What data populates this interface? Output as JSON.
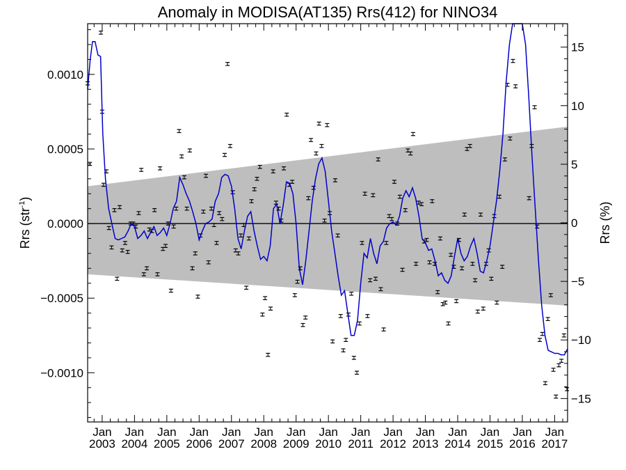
{
  "chart_data": {
    "type": "scatter",
    "title": "Anomaly in MODISA(AT135) Rrs(412) for NINO34",
    "ylabel_left": "Rrs (str",
    "ylabel_left_sup": "-1",
    "ylabel_left_close": ")",
    "ylabel_right": "Rrs (%)",
    "xlim": [
      2002.55,
      2017.4
    ],
    "ylim": [
      -0.00133,
      0.00134
    ],
    "ylim_right": [
      -17.0,
      17.0
    ],
    "y_ticks": [
      {
        "value": 0.001,
        "label": "0.0010"
      },
      {
        "value": 0.0005,
        "label": "0.0005"
      },
      {
        "value": 0.0,
        "label": "0.0000"
      },
      {
        "value": -0.0005,
        "label": "−0.0005"
      },
      {
        "value": -0.001,
        "label": "−0.0010"
      }
    ],
    "y_right_ticks": [
      {
        "value": 15,
        "label": "15"
      },
      {
        "value": 10,
        "label": "10"
      },
      {
        "value": 5,
        "label": "5"
      },
      {
        "value": 0,
        "label": "0"
      },
      {
        "value": -5,
        "label": "−5"
      },
      {
        "value": -10,
        "label": "−10"
      },
      {
        "value": -15,
        "label": "−15"
      }
    ],
    "x_ticks": [
      {
        "value": 2003.0,
        "month": "Jan",
        "year": "2003"
      },
      {
        "value": 2004.0,
        "month": "Jan",
        "year": "2004"
      },
      {
        "value": 2005.0,
        "month": "Jan",
        "year": "2005"
      },
      {
        "value": 2006.0,
        "month": "Jan",
        "year": "2006"
      },
      {
        "value": 2007.0,
        "month": "Jan",
        "year": "2007"
      },
      {
        "value": 2008.0,
        "month": "Jan",
        "year": "2008"
      },
      {
        "value": 2009.0,
        "month": "Jan",
        "year": "2009"
      },
      {
        "value": 2010.0,
        "month": "Jan",
        "year": "2010"
      },
      {
        "value": 2011.0,
        "month": "Jan",
        "year": "2011"
      },
      {
        "value": 2012.0,
        "month": "Jan",
        "year": "2012"
      },
      {
        "value": 2013.0,
        "month": "Jan",
        "year": "2013"
      },
      {
        "value": 2014.0,
        "month": "Jan",
        "year": "2014"
      },
      {
        "value": 2015.0,
        "month": "Jan",
        "year": "2015"
      },
      {
        "value": 2016.0,
        "month": "Jan",
        "year": "2016"
      },
      {
        "value": 2017.0,
        "month": "Jan",
        "year": "2017"
      }
    ],
    "band": {
      "x0": 2002.55,
      "x1": 2017.4,
      "upper": [
        0.00025,
        0.00065
      ],
      "lower": [
        -0.00034,
        -0.00055
      ],
      "color": "#bebebe"
    },
    "zero_line": true,
    "grid": false,
    "legend": "none",
    "colors": {
      "points": "#000000",
      "smooth": "#0000cc",
      "band": "#bebebe",
      "axes": "#000000"
    },
    "points": [
      [
        2002.55,
        0.00094
      ],
      [
        2002.62,
        0.0004
      ],
      [
        2002.96,
        0.00128
      ],
      [
        2003.0,
        0.00075
      ],
      [
        2003.04,
        0.00026
      ],
      [
        2003.13,
        0.00035
      ],
      [
        2003.21,
        -3e-05
      ],
      [
        2003.29,
        -0.00016
      ],
      [
        2003.38,
        9e-05
      ],
      [
        2003.46,
        -0.00037
      ],
      [
        2003.54,
        0.00011
      ],
      [
        2003.62,
        -0.00018
      ],
      [
        2003.71,
        -0.00013
      ],
      [
        2003.79,
        -0.00019
      ],
      [
        2003.88,
        -0.0
      ],
      [
        2003.96,
        0.0
      ],
      [
        2004.04,
        -2e-05
      ],
      [
        2004.13,
        7e-05
      ],
      [
        2004.21,
        0.00036
      ],
      [
        2004.29,
        -0.00034
      ],
      [
        2004.38,
        -0.0003
      ],
      [
        2004.46,
        -4e-05
      ],
      [
        2004.54,
        -5e-05
      ],
      [
        2004.62,
        9e-05
      ],
      [
        2004.71,
        -0.00034
      ],
      [
        2004.79,
        0.00037
      ],
      [
        2004.88,
        -0.00017
      ],
      [
        2004.96,
        -0.00015
      ],
      [
        2005.04,
        -0.0
      ],
      [
        2005.13,
        -0.00045
      ],
      [
        2005.21,
        -2e-05
      ],
      [
        2005.29,
        0.0001
      ],
      [
        2005.38,
        0.00062
      ],
      [
        2005.46,
        0.00045
      ],
      [
        2005.54,
        0.00031
      ],
      [
        2005.62,
        0.0001
      ],
      [
        2005.71,
        0.00049
      ],
      [
        2005.79,
        -0.0003
      ],
      [
        2005.88,
        -0.0002
      ],
      [
        2005.96,
        -0.00049
      ],
      [
        2006.04,
        -8e-05
      ],
      [
        2006.13,
        8e-05
      ],
      [
        2006.21,
        0.00032
      ],
      [
        2006.29,
        -0.00026
      ],
      [
        2006.38,
        0.0001
      ],
      [
        2006.46,
        -1e-05
      ],
      [
        2006.54,
        -0.00013
      ],
      [
        2006.62,
        7e-05
      ],
      [
        2006.71,
        3e-05
      ],
      [
        2006.79,
        0.00046
      ],
      [
        2006.88,
        0.00107
      ],
      [
        2006.96,
        0.00052
      ],
      [
        2007.04,
        0.00021
      ],
      [
        2007.13,
        -0.00018
      ],
      [
        2007.21,
        -0.0002
      ],
      [
        2007.29,
        -8e-05
      ],
      [
        2007.38,
        -1e-05
      ],
      [
        2007.46,
        -0.00043
      ],
      [
        2007.54,
        -0.0001
      ],
      [
        2007.62,
        0.00015
      ],
      [
        2007.71,
        0.00023
      ],
      [
        2007.79,
        0.0003
      ],
      [
        2007.88,
        0.00038
      ],
      [
        2007.96,
        -0.00061
      ],
      [
        2008.04,
        -0.0005
      ],
      [
        2008.13,
        -0.00088
      ],
      [
        2008.21,
        -0.00057
      ],
      [
        2008.29,
        0.00035
      ],
      [
        2008.38,
        0.00014
      ],
      [
        2008.46,
        0.0001
      ],
      [
        2008.54,
        2e-05
      ],
      [
        2008.62,
        0.00037
      ],
      [
        2008.71,
        0.00073
      ],
      [
        2008.79,
        0.00026
      ],
      [
        2008.88,
        0.00028
      ],
      [
        2008.96,
        -0.00048
      ],
      [
        2009.04,
        -0.00039
      ],
      [
        2009.13,
        -0.0003
      ],
      [
        2009.21,
        -0.00068
      ],
      [
        2009.29,
        -0.00063
      ],
      [
        2009.38,
        0.00017
      ],
      [
        2009.46,
        0.00056
      ],
      [
        2009.54,
        0.00024
      ],
      [
        2009.62,
        0.00047
      ],
      [
        2009.71,
        0.00067
      ],
      [
        2009.79,
        0.00052
      ],
      [
        2009.88,
        2e-05
      ],
      [
        2009.96,
        0.00066
      ],
      [
        2010.04,
        7e-05
      ],
      [
        2010.13,
        -0.00079
      ],
      [
        2010.21,
        0.00029
      ],
      [
        2010.29,
        -8e-05
      ],
      [
        2010.38,
        -0.00062
      ],
      [
        2010.46,
        -0.00085
      ],
      [
        2010.54,
        -0.00078
      ],
      [
        2010.62,
        -0.00061
      ],
      [
        2010.71,
        -0.00047
      ],
      [
        2010.79,
        -0.0009
      ],
      [
        2010.88,
        -0.001
      ],
      [
        2010.96,
        -0.00067
      ],
      [
        2011.04,
        -0.00013
      ],
      [
        2011.13,
        0.0002
      ],
      [
        2011.21,
        -0.00062
      ],
      [
        2011.29,
        -0.00038
      ],
      [
        2011.38,
        0.00019
      ],
      [
        2011.46,
        -0.00037
      ],
      [
        2011.54,
        0.00043
      ],
      [
        2011.62,
        -0.00044
      ],
      [
        2011.71,
        -0.00071
      ],
      [
        2011.79,
        -0.00013
      ],
      [
        2011.88,
        5e-05
      ],
      [
        2011.96,
        3e-05
      ],
      [
        2012.04,
        0.00028
      ],
      [
        2012.13,
        0.0
      ],
      [
        2012.21,
        0.00018
      ],
      [
        2012.29,
        -0.00031
      ],
      [
        2012.38,
        9e-05
      ],
      [
        2012.46,
        0.00049
      ],
      [
        2012.54,
        0.00047
      ],
      [
        2012.62,
        0.0006
      ],
      [
        2012.71,
        -0.00027
      ],
      [
        2012.79,
        0.00014
      ],
      [
        2012.88,
        0.00013
      ],
      [
        2012.96,
        -0.00012
      ],
      [
        2013.04,
        -0.00011
      ],
      [
        2013.13,
        -0.00026
      ],
      [
        2013.21,
        0.00015
      ],
      [
        2013.29,
        -0.00027
      ],
      [
        2013.38,
        -0.00046
      ],
      [
        2013.46,
        -0.0001
      ],
      [
        2013.54,
        -0.00054
      ],
      [
        2013.62,
        -0.00053
      ],
      [
        2013.71,
        -0.00067
      ],
      [
        2013.79,
        -0.00021
      ],
      [
        2013.88,
        -0.00029
      ],
      [
        2013.96,
        -0.00052
      ],
      [
        2014.04,
        -0.00011
      ],
      [
        2014.13,
        -0.0003
      ],
      [
        2014.21,
        6e-05
      ],
      [
        2014.29,
        0.0005
      ],
      [
        2014.38,
        0.00052
      ],
      [
        2014.46,
        -0.00027
      ],
      [
        2014.54,
        -0.00038
      ],
      [
        2014.62,
        -0.00059
      ],
      [
        2014.71,
        6e-05
      ],
      [
        2014.79,
        -0.00057
      ],
      [
        2014.88,
        -0.00027
      ],
      [
        2014.96,
        -0.00018
      ],
      [
        2015.04,
        -0.00037
      ],
      [
        2015.13,
        5e-05
      ],
      [
        2015.21,
        -0.00053
      ],
      [
        2015.29,
        0.00018
      ],
      [
        2015.38,
        -0.00029
      ],
      [
        2015.46,
        0.00043
      ],
      [
        2015.54,
        0.00093
      ],
      [
        2015.62,
        0.00057
      ],
      [
        2015.71,
        0.00109
      ],
      [
        2015.79,
        0.00092
      ],
      [
        2016.21,
        0.00017
      ],
      [
        2016.29,
        0.00052
      ],
      [
        2016.38,
        0.00078
      ],
      [
        2016.46,
        -2e-05
      ],
      [
        2016.54,
        -0.00078
      ],
      [
        2016.62,
        -0.00074
      ],
      [
        2016.71,
        -0.00107
      ],
      [
        2016.79,
        -0.00064
      ],
      [
        2016.88,
        -0.00048
      ],
      [
        2016.96,
        -0.00098
      ],
      [
        2017.04,
        -0.00116
      ],
      [
        2017.13,
        -0.00095
      ],
      [
        2017.21,
        -0.00092
      ],
      [
        2017.29,
        -0.00075
      ],
      [
        2017.38,
        -0.00111
      ]
    ],
    "smooth": [
      [
        2002.55,
        0.0009
      ],
      [
        2002.63,
        0.0011
      ],
      [
        2002.7,
        0.00122
      ],
      [
        2002.78,
        0.00122
      ],
      [
        2002.87,
        0.00113
      ],
      [
        2002.95,
        0.00112
      ],
      [
        2003.02,
        0.0006
      ],
      [
        2003.1,
        0.0003
      ],
      [
        2003.2,
        0.0001
      ],
      [
        2003.3,
        0.0
      ],
      [
        2003.4,
        -0.0001
      ],
      [
        2003.5,
        -0.00011
      ],
      [
        2003.6,
        -0.0001
      ],
      [
        2003.7,
        -9e-05
      ],
      [
        2003.8,
        -5e-05
      ],
      [
        2003.9,
        0.0
      ],
      [
        2004.0,
        -2e-05
      ],
      [
        2004.1,
        -0.0001
      ],
      [
        2004.2,
        -8e-05
      ],
      [
        2004.3,
        -5e-05
      ],
      [
        2004.4,
        -0.0001
      ],
      [
        2004.5,
        -6e-05
      ],
      [
        2004.6,
        -2e-05
      ],
      [
        2004.7,
        -8e-05
      ],
      [
        2004.8,
        -6e-05
      ],
      [
        2004.9,
        -3e-05
      ],
      [
        2005.0,
        -8e-05
      ],
      [
        2005.1,
        0.0
      ],
      [
        2005.2,
        0.0001
      ],
      [
        2005.3,
        0.00015
      ],
      [
        2005.4,
        0.00031
      ],
      [
        2005.5,
        0.00026
      ],
      [
        2005.6,
        0.0002
      ],
      [
        2005.7,
        0.00015
      ],
      [
        2005.8,
        8e-05
      ],
      [
        2005.9,
        -0.0
      ],
      [
        2006.0,
        -0.00011
      ],
      [
        2006.1,
        -5e-05
      ],
      [
        2006.2,
        -0.0
      ],
      [
        2006.3,
        1e-05
      ],
      [
        2006.4,
        3e-05
      ],
      [
        2006.5,
        0.00015
      ],
      [
        2006.6,
        0.0002
      ],
      [
        2006.7,
        0.00031
      ],
      [
        2006.8,
        0.00033
      ],
      [
        2006.9,
        0.00032
      ],
      [
        2007.0,
        0.00025
      ],
      [
        2007.1,
        0.0001
      ],
      [
        2007.2,
        -0.0001
      ],
      [
        2007.3,
        -0.00017
      ],
      [
        2007.4,
        -5e-05
      ],
      [
        2007.5,
        5e-05
      ],
      [
        2007.6,
        8e-05
      ],
      [
        2007.7,
        -5e-05
      ],
      [
        2007.8,
        -0.00015
      ],
      [
        2007.9,
        -0.00024
      ],
      [
        2008.0,
        -0.00022
      ],
      [
        2008.1,
        -0.00025
      ],
      [
        2008.2,
        -0.00015
      ],
      [
        2008.3,
        0.0001
      ],
      [
        2008.4,
        0.00013
      ],
      [
        2008.5,
        0.0
      ],
      [
        2008.6,
        0.00012
      ],
      [
        2008.7,
        0.00028
      ],
      [
        2008.8,
        0.00027
      ],
      [
        2008.9,
        0.0002
      ],
      [
        2009.0,
        -0.0
      ],
      [
        2009.1,
        -0.0003
      ],
      [
        2009.2,
        -0.00041
      ],
      [
        2009.3,
        -0.00025
      ],
      [
        2009.4,
        -5e-05
      ],
      [
        2009.5,
        0.00015
      ],
      [
        2009.6,
        0.0003
      ],
      [
        2009.7,
        0.0004
      ],
      [
        2009.8,
        0.00044
      ],
      [
        2009.9,
        0.00035
      ],
      [
        2010.0,
        0.00015
      ],
      [
        2010.1,
        -5e-05
      ],
      [
        2010.2,
        -0.0002
      ],
      [
        2010.3,
        -0.00035
      ],
      [
        2010.4,
        -0.00048
      ],
      [
        2010.5,
        -0.00045
      ],
      [
        2010.6,
        -0.0006
      ],
      [
        2010.7,
        -0.00075
      ],
      [
        2010.8,
        -0.00075
      ],
      [
        2010.9,
        -0.00065
      ],
      [
        2011.0,
        -0.0004
      ],
      [
        2011.1,
        -0.0002
      ],
      [
        2011.2,
        -0.00023
      ],
      [
        2011.3,
        -0.0001
      ],
      [
        2011.4,
        -0.0002
      ],
      [
        2011.5,
        -0.00027
      ],
      [
        2011.6,
        -0.00015
      ],
      [
        2011.7,
        -0.00012
      ],
      [
        2011.8,
        -3e-05
      ],
      [
        2011.9,
        0.0
      ],
      [
        2012.0,
        1e-05
      ],
      [
        2012.1,
        -1e-05
      ],
      [
        2012.2,
        5e-05
      ],
      [
        2012.3,
        0.00017
      ],
      [
        2012.4,
        0.00022
      ],
      [
        2012.5,
        0.00018
      ],
      [
        2012.6,
        0.00024
      ],
      [
        2012.7,
        0.00017
      ],
      [
        2012.8,
        5e-05
      ],
      [
        2012.9,
        -0.0001
      ],
      [
        2013.0,
        -0.00013
      ],
      [
        2013.1,
        -0.00018
      ],
      [
        2013.2,
        -0.00017
      ],
      [
        2013.3,
        -0.00025
      ],
      [
        2013.4,
        -0.00035
      ],
      [
        2013.5,
        -0.00033
      ],
      [
        2013.6,
        -0.00038
      ],
      [
        2013.7,
        -0.0004
      ],
      [
        2013.8,
        -0.00035
      ],
      [
        2013.9,
        -0.00022
      ],
      [
        2014.0,
        -0.0001
      ],
      [
        2014.1,
        -0.0002
      ],
      [
        2014.2,
        -0.00025
      ],
      [
        2014.3,
        -0.00022
      ],
      [
        2014.4,
        -0.00015
      ],
      [
        2014.5,
        -0.0001
      ],
      [
        2014.6,
        -0.0002
      ],
      [
        2014.7,
        -0.00032
      ],
      [
        2014.8,
        -0.00033
      ],
      [
        2014.9,
        -0.00025
      ],
      [
        2015.0,
        -0.00015
      ],
      [
        2015.1,
        -0.0
      ],
      [
        2015.2,
        0.00015
      ],
      [
        2015.3,
        0.00035
      ],
      [
        2015.4,
        0.0006
      ],
      [
        2015.5,
        0.00095
      ],
      [
        2015.6,
        0.0012
      ],
      [
        2015.7,
        0.00134
      ],
      [
        2015.8,
        0.00134
      ],
      [
        2015.9,
        0.00134
      ],
      [
        2016.0,
        0.00134
      ],
      [
        2016.1,
        0.0012
      ],
      [
        2016.2,
        0.00085
      ],
      [
        2016.3,
        0.00045
      ],
      [
        2016.4,
        0.0001
      ],
      [
        2016.5,
        -0.00025
      ],
      [
        2016.6,
        -0.00055
      ],
      [
        2016.7,
        -0.00075
      ],
      [
        2016.8,
        -0.00085
      ],
      [
        2016.9,
        -0.00086
      ],
      [
        2017.0,
        -0.00087
      ],
      [
        2017.1,
        -0.00087
      ],
      [
        2017.2,
        -0.00088
      ],
      [
        2017.3,
        -0.00088
      ],
      [
        2017.35,
        -0.00086
      ],
      [
        2017.4,
        -0.00084
      ]
    ]
  }
}
